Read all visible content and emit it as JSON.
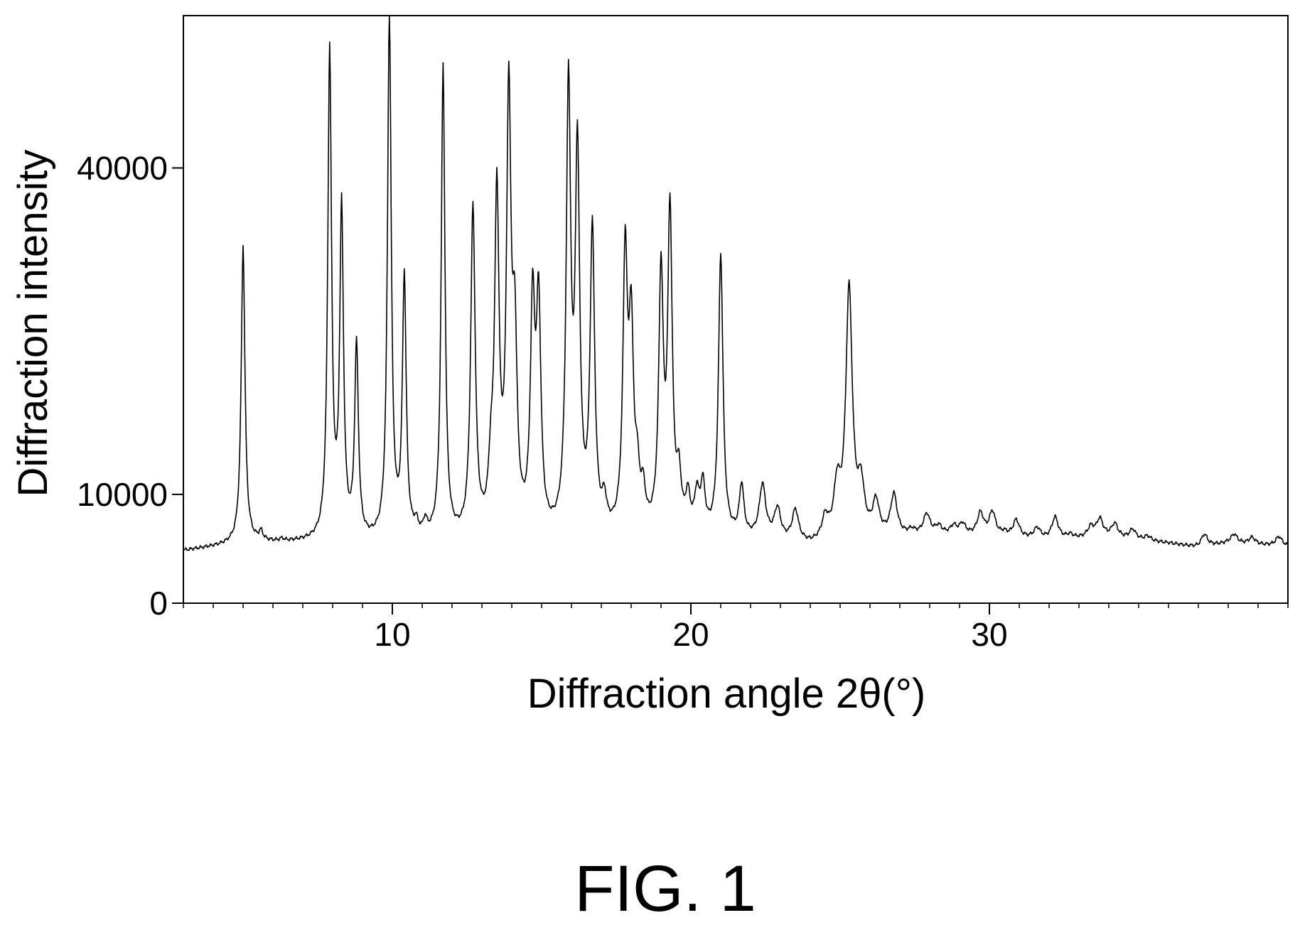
{
  "figure": {
    "caption": "FIG. 1"
  },
  "chart_data": {
    "type": "line",
    "title": "",
    "xlabel": "Diffraction angle 2θ(°)",
    "ylabel": "Diffraction intensity",
    "xlim": [
      3,
      40
    ],
    "ylim": [
      0,
      54000
    ],
    "x_ticks": [
      10,
      20,
      30
    ],
    "y_ticks": [
      0,
      10000,
      40000
    ],
    "grid": false,
    "series": [
      {
        "color": "#000000",
        "baseline": [
          [
            3,
            4800
          ],
          [
            4.5,
            5300
          ],
          [
            5,
            5500
          ],
          [
            7,
            5500
          ],
          [
            9,
            5400
          ],
          [
            11,
            5500
          ],
          [
            14,
            5500
          ],
          [
            16,
            5600
          ],
          [
            18,
            5800
          ],
          [
            20,
            6000
          ],
          [
            22,
            5700
          ],
          [
            24,
            5200
          ],
          [
            26,
            5800
          ],
          [
            28,
            6200
          ],
          [
            30,
            6000
          ],
          [
            32,
            5800
          ],
          [
            34,
            6000
          ],
          [
            36,
            5500
          ],
          [
            37,
            5100
          ],
          [
            38,
            5500
          ],
          [
            40,
            5200
          ]
        ],
        "peaks": [
          {
            "x": 5.0,
            "y": 32800
          },
          {
            "x": 5.6,
            "y": 6300
          },
          {
            "x": 6.3,
            "y": 5700
          },
          {
            "x": 7.9,
            "y": 50300
          },
          {
            "x": 8.3,
            "y": 35400
          },
          {
            "x": 8.8,
            "y": 23100
          },
          {
            "x": 9.9,
            "y": 53800
          },
          {
            "x": 10.4,
            "y": 29300
          },
          {
            "x": 10.8,
            "y": 6500
          },
          {
            "x": 11.1,
            "y": 6700
          },
          {
            "x": 11.7,
            "y": 48900
          },
          {
            "x": 12.7,
            "y": 35600
          },
          {
            "x": 13.3,
            "y": 10200
          },
          {
            "x": 13.5,
            "y": 36000
          },
          {
            "x": 13.9,
            "y": 44600
          },
          {
            "x": 14.1,
            "y": 21700
          },
          {
            "x": 14.7,
            "y": 25700
          },
          {
            "x": 14.9,
            "y": 25700
          },
          {
            "x": 15.9,
            "y": 46000
          },
          {
            "x": 16.2,
            "y": 39600
          },
          {
            "x": 16.7,
            "y": 33300
          },
          {
            "x": 17.1,
            "y": 8200
          },
          {
            "x": 17.8,
            "y": 30800
          },
          {
            "x": 18.0,
            "y": 23500
          },
          {
            "x": 18.2,
            "y": 10200
          },
          {
            "x": 18.4,
            "y": 9000
          },
          {
            "x": 19.0,
            "y": 29200
          },
          {
            "x": 19.3,
            "y": 34900
          },
          {
            "x": 19.6,
            "y": 10300
          },
          {
            "x": 19.9,
            "y": 9000
          },
          {
            "x": 20.2,
            "y": 9200
          },
          {
            "x": 20.4,
            "y": 10200
          },
          {
            "x": 21.0,
            "y": 31700
          },
          {
            "x": 21.7,
            "y": 10400
          },
          {
            "x": 22.4,
            "y": 10500
          },
          {
            "x": 22.9,
            "y": 8300
          },
          {
            "x": 23.5,
            "y": 8200
          },
          {
            "x": 23.8,
            "y": 5200
          },
          {
            "x": 24.5,
            "y": 7300
          },
          {
            "x": 24.9,
            "y": 10000
          },
          {
            "x": 25.3,
            "y": 28500
          },
          {
            "x": 25.7,
            "y": 10000
          },
          {
            "x": 26.2,
            "y": 8900
          },
          {
            "x": 26.8,
            "y": 9700
          },
          {
            "x": 27.4,
            "y": 6500
          },
          {
            "x": 27.9,
            "y": 8000
          },
          {
            "x": 28.3,
            "y": 6900
          },
          {
            "x": 28.8,
            "y": 6900
          },
          {
            "x": 29.1,
            "y": 7100
          },
          {
            "x": 29.7,
            "y": 8100
          },
          {
            "x": 30.1,
            "y": 8200
          },
          {
            "x": 30.5,
            "y": 6300
          },
          {
            "x": 30.9,
            "y": 7500
          },
          {
            "x": 31.6,
            "y": 6800
          },
          {
            "x": 32.2,
            "y": 7800
          },
          {
            "x": 32.7,
            "y": 6200
          },
          {
            "x": 33.4,
            "y": 6900
          },
          {
            "x": 33.7,
            "y": 7600
          },
          {
            "x": 34.2,
            "y": 7200
          },
          {
            "x": 34.8,
            "y": 6700
          },
          {
            "x": 35.3,
            "y": 6100
          },
          {
            "x": 37.2,
            "y": 6300
          },
          {
            "x": 38.2,
            "y": 6300
          },
          {
            "x": 38.8,
            "y": 6000
          },
          {
            "x": 39.7,
            "y": 6100
          }
        ]
      }
    ]
  }
}
